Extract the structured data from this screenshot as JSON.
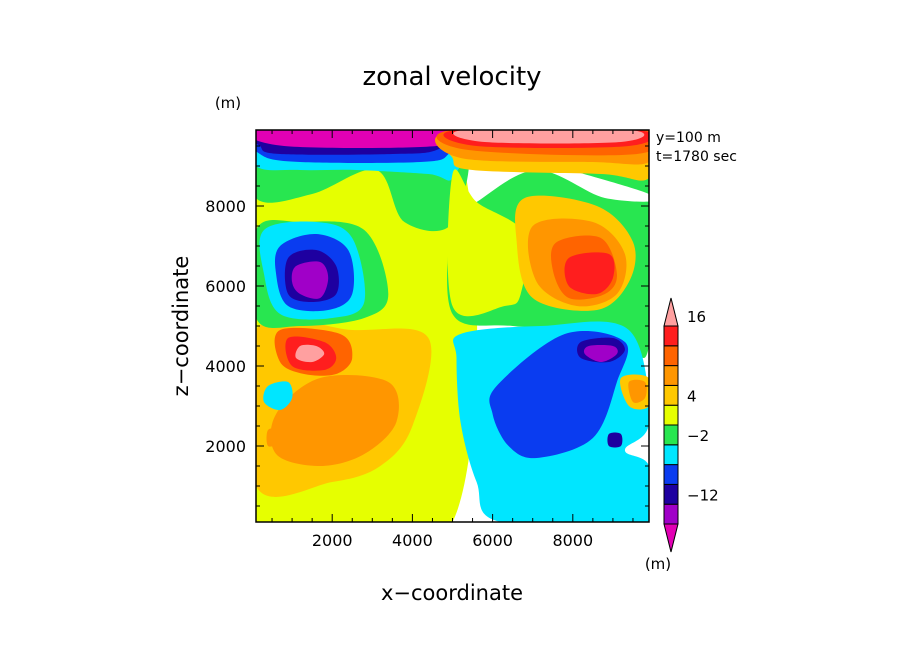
{
  "chart_data": {
    "type": "heatmap",
    "title": "zonal velocity",
    "xlabel": "x−coordinate",
    "ylabel": "z−coordinate",
    "y_unit_label": "(m)",
    "colorbar_unit_label": "(m)",
    "annotations": [
      "y=100 m",
      "t=1780 sec"
    ],
    "xlim": [
      100,
      9900
    ],
    "ylim": [
      100,
      9900
    ],
    "x_ticks": [
      2000,
      4000,
      6000,
      8000
    ],
    "x_tick_labels": [
      "2000",
      "4000",
      "6000",
      "8000"
    ],
    "y_ticks": [
      2000,
      4000,
      6000,
      8000
    ],
    "y_tick_labels": [
      "2000",
      "4000",
      "6000",
      "8000"
    ],
    "colorbar": {
      "colors": [
        "#e200b4",
        "#a000c8",
        "#1e00a0",
        "#0a3cf0",
        "#00e6ff",
        "#28e650",
        "#e6ff00",
        "#ffc800",
        "#ff9600",
        "#ff6400",
        "#ff1e1e",
        "#ffa0a0"
      ],
      "labels": [
        "−12",
        "−2",
        "4",
        "16"
      ],
      "label_positions": [
        2,
        5,
        7,
        11
      ]
    },
    "contour_regions": [
      {
        "level": 6,
        "polygon": [
          [
            100,
            9900
          ],
          [
            5000,
            9900
          ],
          [
            5000,
            100
          ],
          [
            100,
            100
          ]
        ]
      },
      {
        "level": 7,
        "polygon": [
          [
            100,
            4900
          ],
          [
            2500,
            4900
          ],
          [
            4400,
            4700
          ],
          [
            4000,
            2500
          ],
          [
            3200,
            1500
          ],
          [
            2000,
            1100
          ],
          [
            100,
            1000
          ]
        ]
      },
      {
        "level": 8,
        "polygon": [
          [
            1700,
            3700
          ],
          [
            3400,
            3600
          ],
          [
            3600,
            2600
          ],
          [
            2800,
            1800
          ],
          [
            1700,
            1500
          ],
          [
            600,
            1800
          ],
          [
            600,
            2800
          ]
        ]
      },
      {
        "level": 9,
        "polygon": [
          [
            700,
            4900
          ],
          [
            2200,
            4800
          ],
          [
            2500,
            4200
          ],
          [
            2100,
            3800
          ],
          [
            1300,
            3800
          ],
          [
            700,
            4100
          ]
        ]
      },
      {
        "level": 10,
        "polygon": [
          [
            900,
            4700
          ],
          [
            1800,
            4600
          ],
          [
            2100,
            4200
          ],
          [
            1800,
            3900
          ],
          [
            1000,
            4000
          ]
        ]
      },
      {
        "level": 11,
        "polygon": [
          [
            1200,
            4500
          ],
          [
            1600,
            4500
          ],
          [
            1800,
            4300
          ],
          [
            1500,
            4100
          ],
          [
            1100,
            4200
          ]
        ]
      },
      {
        "level": 4,
        "polygon": [
          [
            400,
            3500
          ],
          [
            900,
            3600
          ],
          [
            1000,
            3200
          ],
          [
            700,
            2900
          ],
          [
            300,
            3100
          ]
        ]
      },
      {
        "level": 8,
        "polygon": [
          [
            400,
            2400
          ],
          [
            700,
            2400
          ],
          [
            700,
            2100
          ],
          [
            400,
            2000
          ]
        ]
      },
      {
        "level": 5,
        "polygon": [
          [
            100,
            9900
          ],
          [
            5000,
            9900
          ],
          [
            5000,
            7600
          ],
          [
            3800,
            7600
          ],
          [
            3100,
            8900
          ],
          [
            1500,
            8300
          ],
          [
            100,
            8200
          ]
        ]
      },
      {
        "level": 5,
        "polygon": [
          [
            100,
            7400
          ],
          [
            1200,
            7600
          ],
          [
            2800,
            7400
          ],
          [
            3400,
            5800
          ],
          [
            2800,
            5200
          ],
          [
            1200,
            5000
          ],
          [
            100,
            5200
          ]
        ]
      },
      {
        "level": 4,
        "polygon": [
          [
            300,
            7400
          ],
          [
            1600,
            7600
          ],
          [
            2500,
            7200
          ],
          [
            2800,
            5600
          ],
          [
            2000,
            5200
          ],
          [
            700,
            5300
          ],
          [
            300,
            6300
          ]
        ]
      },
      {
        "level": 3,
        "polygon": [
          [
            700,
            7000
          ],
          [
            1600,
            7300
          ],
          [
            2400,
            6900
          ],
          [
            2500,
            5800
          ],
          [
            1900,
            5400
          ],
          [
            900,
            5500
          ],
          [
            600,
            6300
          ]
        ]
      },
      {
        "level": 2,
        "polygon": [
          [
            900,
            6700
          ],
          [
            1600,
            6900
          ],
          [
            2100,
            6500
          ],
          [
            2100,
            5800
          ],
          [
            1500,
            5600
          ],
          [
            900,
            5800
          ]
        ]
      },
      {
        "level": 1,
        "polygon": [
          [
            1100,
            6500
          ],
          [
            1700,
            6600
          ],
          [
            1900,
            6200
          ],
          [
            1700,
            5700
          ],
          [
            1200,
            5800
          ],
          [
            1000,
            6100
          ]
        ]
      },
      {
        "level": 4,
        "polygon": [
          [
            100,
            9900
          ],
          [
            5000,
            9900
          ],
          [
            5000,
            8700
          ],
          [
            4400,
            8800
          ],
          [
            2600,
            8900
          ],
          [
            1200,
            8900
          ],
          [
            100,
            9000
          ]
        ]
      },
      {
        "level": 3,
        "polygon": [
          [
            100,
            9900
          ],
          [
            5000,
            9900
          ],
          [
            4900,
            9300
          ],
          [
            4200,
            9100
          ],
          [
            1200,
            9100
          ],
          [
            200,
            9300
          ]
        ]
      },
      {
        "level": 2,
        "polygon": [
          [
            100,
            9900
          ],
          [
            5000,
            9900
          ],
          [
            4600,
            9400
          ],
          [
            3500,
            9300
          ],
          [
            700,
            9300
          ],
          [
            200,
            9500
          ]
        ]
      },
      {
        "level": 0,
        "polygon": [
          [
            200,
            9900
          ],
          [
            4800,
            9900
          ],
          [
            4600,
            9500
          ],
          [
            800,
            9500
          ]
        ]
      },
      {
        "level": 5,
        "polygon": [
          [
            5000,
            9900
          ],
          [
            9900,
            9900
          ],
          [
            9900,
            4500
          ],
          [
            9000,
            4900
          ],
          [
            6500,
            5000
          ],
          [
            5000,
            5300
          ],
          [
            5000,
            7600
          ],
          [
            5600,
            8100
          ],
          [
            7100,
            8900
          ],
          [
            8800,
            8200
          ],
          [
            9900,
            8300
          ]
        ]
      },
      {
        "level": 4,
        "polygon": [
          [
            5200,
            4800
          ],
          [
            7200,
            5000
          ],
          [
            9400,
            4900
          ],
          [
            9900,
            2600
          ],
          [
            9300,
            1900
          ],
          [
            9900,
            1500
          ],
          [
            9900,
            100
          ],
          [
            6200,
            100
          ],
          [
            5600,
            1100
          ],
          [
            5200,
            2600
          ],
          [
            5100,
            4200
          ]
        ]
      },
      {
        "level": 3,
        "polygon": [
          [
            6100,
            3500
          ],
          [
            7800,
            4800
          ],
          [
            9300,
            4600
          ],
          [
            9100,
            3600
          ],
          [
            8500,
            2200
          ],
          [
            7100,
            1700
          ],
          [
            6400,
            2000
          ],
          [
            6000,
            2800
          ]
        ]
      },
      {
        "level": 2,
        "polygon": [
          [
            8200,
            4600
          ],
          [
            9000,
            4700
          ],
          [
            9300,
            4400
          ],
          [
            8900,
            4100
          ],
          [
            8200,
            4200
          ]
        ]
      },
      {
        "level": 1,
        "polygon": [
          [
            8400,
            4500
          ],
          [
            9000,
            4500
          ],
          [
            9100,
            4300
          ],
          [
            8700,
            4100
          ],
          [
            8300,
            4300
          ]
        ]
      },
      {
        "level": 7,
        "polygon": [
          [
            9200,
            3700
          ],
          [
            9900,
            3700
          ],
          [
            9900,
            3000
          ],
          [
            9400,
            3000
          ]
        ]
      },
      {
        "level": 8,
        "polygon": [
          [
            9400,
            3600
          ],
          [
            9800,
            3600
          ],
          [
            9800,
            3200
          ],
          [
            9500,
            3100
          ]
        ]
      },
      {
        "level": 2,
        "polygon": [
          [
            8900,
            2300
          ],
          [
            9200,
            2300
          ],
          [
            9200,
            2000
          ],
          [
            8900,
            2000
          ]
        ]
      },
      {
        "level": 6,
        "polygon": [
          [
            5000,
            8800
          ],
          [
            5600,
            8100
          ],
          [
            6800,
            7300
          ],
          [
            6700,
            5800
          ],
          [
            6300,
            5500
          ],
          [
            5000,
            5500
          ]
        ]
      },
      {
        "level": 7,
        "polygon": [
          [
            6800,
            8200
          ],
          [
            8600,
            8000
          ],
          [
            9500,
            7100
          ],
          [
            9400,
            6100
          ],
          [
            8600,
            5400
          ],
          [
            7000,
            5700
          ],
          [
            6600,
            7100
          ]
        ]
      },
      {
        "level": 8,
        "polygon": [
          [
            7000,
            7500
          ],
          [
            8500,
            7600
          ],
          [
            9300,
            6800
          ],
          [
            9100,
            5800
          ],
          [
            8100,
            5500
          ],
          [
            7100,
            6100
          ]
        ]
      },
      {
        "level": 9,
        "polygon": [
          [
            7600,
            7100
          ],
          [
            8700,
            7200
          ],
          [
            9100,
            6300
          ],
          [
            8800,
            5800
          ],
          [
            7900,
            5700
          ],
          [
            7500,
            6400
          ]
        ]
      },
      {
        "level": 10,
        "polygon": [
          [
            7900,
            6700
          ],
          [
            8900,
            6800
          ],
          [
            9000,
            6200
          ],
          [
            8600,
            5800
          ],
          [
            7900,
            6000
          ]
        ]
      },
      {
        "level": 7,
        "polygon": [
          [
            5000,
            9900
          ],
          [
            9900,
            9900
          ],
          [
            9900,
            8700
          ],
          [
            8700,
            8800
          ],
          [
            5500,
            8900
          ],
          [
            5000,
            9200
          ]
        ]
      },
      {
        "level": 8,
        "polygon": [
          [
            5000,
            9900
          ],
          [
            9900,
            9900
          ],
          [
            9900,
            9100
          ],
          [
            8500,
            9100
          ],
          [
            5200,
            9200
          ]
        ]
      },
      {
        "level": 9,
        "polygon": [
          [
            5000,
            9900
          ],
          [
            9800,
            9900
          ],
          [
            9600,
            9300
          ],
          [
            5400,
            9400
          ]
        ]
      },
      {
        "level": 10,
        "polygon": [
          [
            5100,
            9900
          ],
          [
            9600,
            9900
          ],
          [
            9400,
            9500
          ],
          [
            5600,
            9500
          ]
        ]
      },
      {
        "level": 11,
        "polygon": [
          [
            5300,
            9900
          ],
          [
            9400,
            9900
          ],
          [
            9200,
            9600
          ],
          [
            5800,
            9600
          ]
        ]
      }
    ]
  }
}
